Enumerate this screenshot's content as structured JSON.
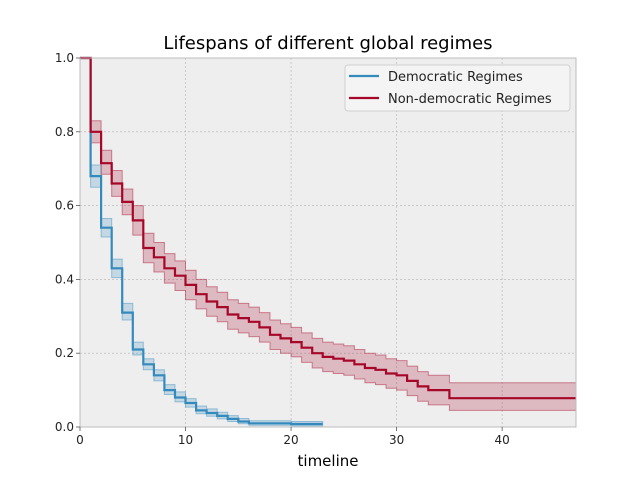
{
  "chart_data": {
    "type": "line",
    "title": "Lifespans of different global regimes",
    "xlabel": "timeline",
    "ylabel": "",
    "xlim": [
      0,
      47
    ],
    "ylim": [
      0.0,
      1.0
    ],
    "xticks": [
      0,
      10,
      20,
      30,
      40
    ],
    "yticks": [
      0.0,
      0.2,
      0.4,
      0.6,
      0.8,
      1.0
    ],
    "xtick_labels": [
      "0",
      "10",
      "20",
      "30",
      "40"
    ],
    "ytick_labels": [
      "0.0",
      "0.2",
      "0.4",
      "0.6",
      "0.8",
      "1.0"
    ],
    "grid": true,
    "legend_position": "top-right",
    "series": [
      {
        "name": "Democratic Regimes",
        "color": "#348ABD",
        "step": true,
        "x": [
          0,
          1,
          2,
          3,
          4,
          5,
          6,
          7,
          8,
          9,
          10,
          11,
          12,
          13,
          14,
          15,
          16,
          17,
          18,
          19,
          20,
          21,
          22,
          23
        ],
        "y": [
          1.0,
          0.68,
          0.54,
          0.43,
          0.31,
          0.21,
          0.17,
          0.14,
          0.1,
          0.08,
          0.065,
          0.045,
          0.038,
          0.03,
          0.022,
          0.015,
          0.01,
          0.01,
          0.01,
          0.01,
          0.008,
          0.008,
          0.008,
          0.008
        ],
        "ci_lower": [
          1.0,
          0.65,
          0.515,
          0.405,
          0.29,
          0.195,
          0.155,
          0.125,
          0.088,
          0.068,
          0.054,
          0.036,
          0.029,
          0.022,
          0.015,
          0.009,
          0.005,
          0.005,
          0.005,
          0.005,
          0.003,
          0.003,
          0.003,
          0.003
        ],
        "ci_upper": [
          1.0,
          0.71,
          0.565,
          0.455,
          0.335,
          0.23,
          0.185,
          0.155,
          0.115,
          0.095,
          0.077,
          0.057,
          0.049,
          0.04,
          0.031,
          0.023,
          0.017,
          0.017,
          0.017,
          0.017,
          0.015,
          0.015,
          0.015,
          0.015
        ]
      },
      {
        "name": "Non-democratic Regimes",
        "color": "#A60628",
        "step": true,
        "x": [
          0,
          1,
          2,
          3,
          4,
          5,
          6,
          7,
          8,
          9,
          10,
          11,
          12,
          13,
          14,
          15,
          16,
          17,
          18,
          19,
          20,
          21,
          22,
          23,
          24,
          25,
          26,
          27,
          28,
          29,
          30,
          31,
          32,
          33,
          34,
          35,
          47
        ],
        "y": [
          1.0,
          0.8,
          0.715,
          0.66,
          0.61,
          0.56,
          0.485,
          0.46,
          0.43,
          0.41,
          0.385,
          0.36,
          0.34,
          0.325,
          0.305,
          0.295,
          0.285,
          0.27,
          0.25,
          0.24,
          0.23,
          0.215,
          0.2,
          0.19,
          0.185,
          0.18,
          0.17,
          0.16,
          0.155,
          0.145,
          0.14,
          0.125,
          0.11,
          0.1,
          0.1,
          0.078,
          0.078
        ],
        "ci_lower": [
          1.0,
          0.77,
          0.685,
          0.625,
          0.575,
          0.52,
          0.445,
          0.42,
          0.39,
          0.37,
          0.345,
          0.32,
          0.3,
          0.285,
          0.265,
          0.255,
          0.245,
          0.23,
          0.21,
          0.2,
          0.19,
          0.175,
          0.16,
          0.15,
          0.145,
          0.14,
          0.13,
          0.12,
          0.115,
          0.105,
          0.1,
          0.085,
          0.07,
          0.06,
          0.06,
          0.045,
          0.035
        ],
        "ci_upper": [
          1.0,
          0.83,
          0.75,
          0.695,
          0.645,
          0.6,
          0.525,
          0.5,
          0.47,
          0.45,
          0.425,
          0.4,
          0.38,
          0.365,
          0.345,
          0.335,
          0.325,
          0.31,
          0.29,
          0.28,
          0.27,
          0.255,
          0.24,
          0.23,
          0.225,
          0.22,
          0.21,
          0.2,
          0.195,
          0.185,
          0.18,
          0.165,
          0.15,
          0.14,
          0.14,
          0.12,
          0.12
        ]
      }
    ]
  },
  "colors": {
    "plot_background": "#EEEEEE",
    "grid": "#B2B2B2",
    "axis_edge": "#BCBCBC"
  }
}
